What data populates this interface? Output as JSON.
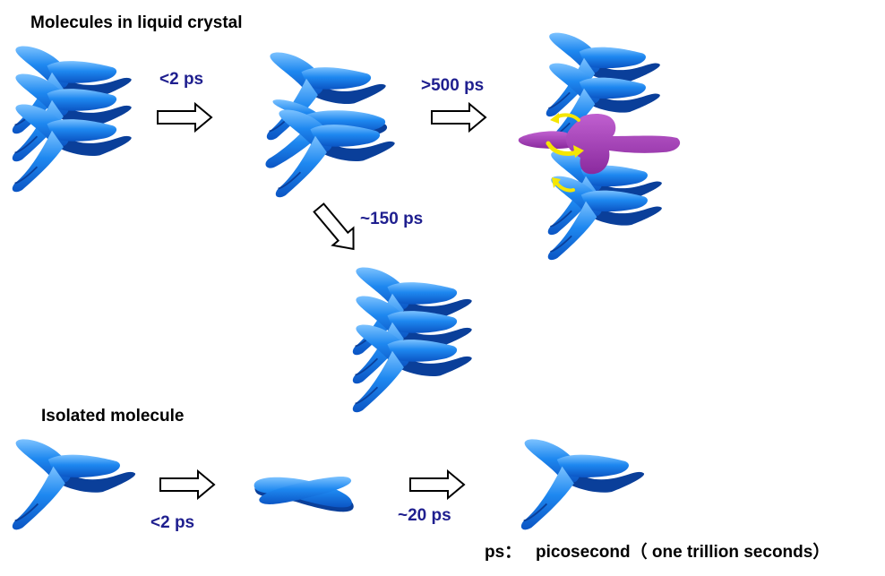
{
  "headings": {
    "liquid_crystal": "Molecules in liquid crystal",
    "isolated": "Isolated molecule"
  },
  "time_labels": {
    "lc_step1": "<2 ps",
    "lc_step2": ">500 ps",
    "lc_step3": "~150 ps",
    "iso_step1": "<2 ps",
    "iso_step2": "~20 ps"
  },
  "footnote": {
    "term": "ps：",
    "definition": "picosecond（ one trillion seconds）"
  },
  "colors": {
    "molecule": "#1e88f0",
    "molecule_dark": "#0a3f9a",
    "distorted_molecule": "#a13cb4",
    "rotation_arrow": "#f5e600",
    "label_text": "#1f1f8f"
  }
}
